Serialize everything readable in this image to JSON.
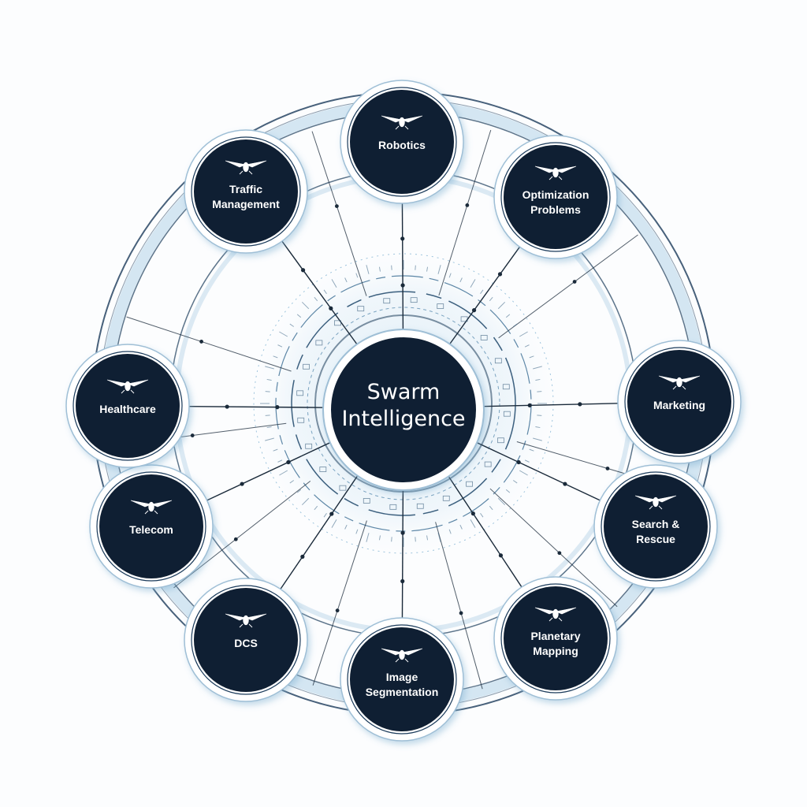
{
  "center": {
    "line1": "Swarm",
    "line2": "Intelligence"
  },
  "nodes": [
    {
      "id": "robotics",
      "lines": [
        "Robotics"
      ]
    },
    {
      "id": "optimization-problems",
      "lines": [
        "Optimization",
        "Problems"
      ]
    },
    {
      "id": "marketing",
      "lines": [
        "Marketing"
      ]
    },
    {
      "id": "search-rescue",
      "lines": [
        "Search &",
        "Rescue"
      ]
    },
    {
      "id": "planetary-mapping",
      "lines": [
        "Planetary",
        "Mapping"
      ]
    },
    {
      "id": "image-segmentation",
      "lines": [
        "Image",
        "Segmentation"
      ]
    },
    {
      "id": "dcs",
      "lines": [
        "DCS"
      ]
    },
    {
      "id": "telecom",
      "lines": [
        "Telecom"
      ]
    },
    {
      "id": "healthcare",
      "lines": [
        "Healthcare"
      ]
    },
    {
      "id": "traffic-management",
      "lines": [
        "Traffic",
        "Management"
      ]
    }
  ],
  "colors": {
    "node_fill": "#0f1f33",
    "node_ring": "#ffffff",
    "ring_stroke": "#1a3a5a",
    "ring_fill": "#eef5fa",
    "connector": "#1a2a3a",
    "accent": "#a9cbe2"
  },
  "icons": {
    "node": "winged-insect-icon"
  }
}
